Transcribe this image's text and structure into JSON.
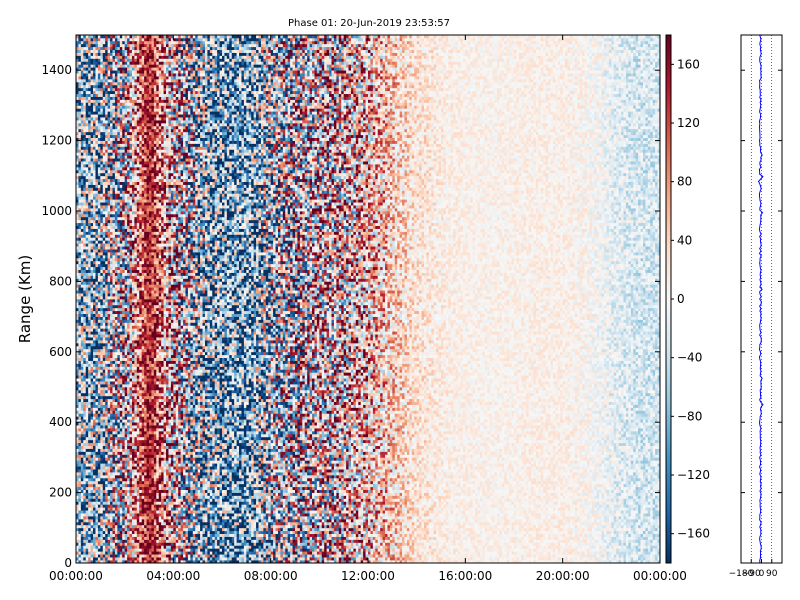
{
  "chart_data": [
    {
      "type": "heatmap",
      "title": "Phase 01: 20-Jun-2019 23:53:57",
      "xlabel": "",
      "ylabel": "Range (Km)",
      "x_tick_labels": [
        "00:00:00",
        "04:00:00",
        "08:00:00",
        "12:00:00",
        "16:00:00",
        "20:00:00",
        "00:00:00"
      ],
      "y_ticks": [
        0,
        200,
        400,
        600,
        800,
        1000,
        1200,
        1400
      ],
      "ylim": [
        0,
        1500
      ],
      "colorbar": {
        "ticks": [
          160,
          120,
          80,
          40,
          0,
          -40,
          -80,
          -120,
          -160
        ],
        "range": [
          -180,
          180
        ],
        "colormap": "RdBu_r",
        "low_color": "#053061",
        "mid_color": "#f7f7f7",
        "high_color": "#67001f"
      },
      "phase_profile_by_hour": [
        {
          "hour": 0,
          "mean": -60,
          "noise": 110
        },
        {
          "hour": 1,
          "mean": -70,
          "noise": 130
        },
        {
          "hour": 2,
          "mean": 10,
          "noise": 150
        },
        {
          "hour": 3,
          "mean": 150,
          "noise": 40
        },
        {
          "hour": 4,
          "mean": 40,
          "noise": 150
        },
        {
          "hour": 5,
          "mean": -60,
          "noise": 140
        },
        {
          "hour": 6,
          "mean": -90,
          "noise": 120
        },
        {
          "hour": 7,
          "mean": -100,
          "noise": 110
        },
        {
          "hour": 8,
          "mean": -40,
          "noise": 140
        },
        {
          "hour": 9,
          "mean": 10,
          "noise": 150
        },
        {
          "hour": 10,
          "mean": 30,
          "noise": 140
        },
        {
          "hour": 11,
          "mean": 40,
          "noise": 130
        },
        {
          "hour": 12,
          "mean": 50,
          "noise": 100
        },
        {
          "hour": 13,
          "mean": 40,
          "noise": 60
        },
        {
          "hour": 14,
          "mean": 25,
          "noise": 30
        },
        {
          "hour": 15,
          "mean": 15,
          "noise": 20
        },
        {
          "hour": 16,
          "mean": 10,
          "noise": 15
        },
        {
          "hour": 17,
          "mean": 8,
          "noise": 15
        },
        {
          "hour": 18,
          "mean": 10,
          "noise": 15
        },
        {
          "hour": 19,
          "mean": 12,
          "noise": 15
        },
        {
          "hour": 20,
          "mean": 12,
          "noise": 15
        },
        {
          "hour": 21,
          "mean": 5,
          "noise": 20
        },
        {
          "hour": 22,
          "mean": -15,
          "noise": 25
        },
        {
          "hour": 23,
          "mean": -30,
          "noise": 30
        },
        {
          "hour": 24,
          "mean": -30,
          "noise": 30
        }
      ]
    },
    {
      "type": "line",
      "title": "",
      "xlabel": "",
      "ylabel": "",
      "x_tick_labels": [
        "−180",
        "−90",
        "0",
        "90"
      ],
      "xlim": [
        -180,
        180
      ],
      "ylim": [
        0,
        1500
      ],
      "grid": true,
      "series_color": "#0000ff",
      "profile_mean": -10,
      "profile_jitter": 8
    }
  ]
}
